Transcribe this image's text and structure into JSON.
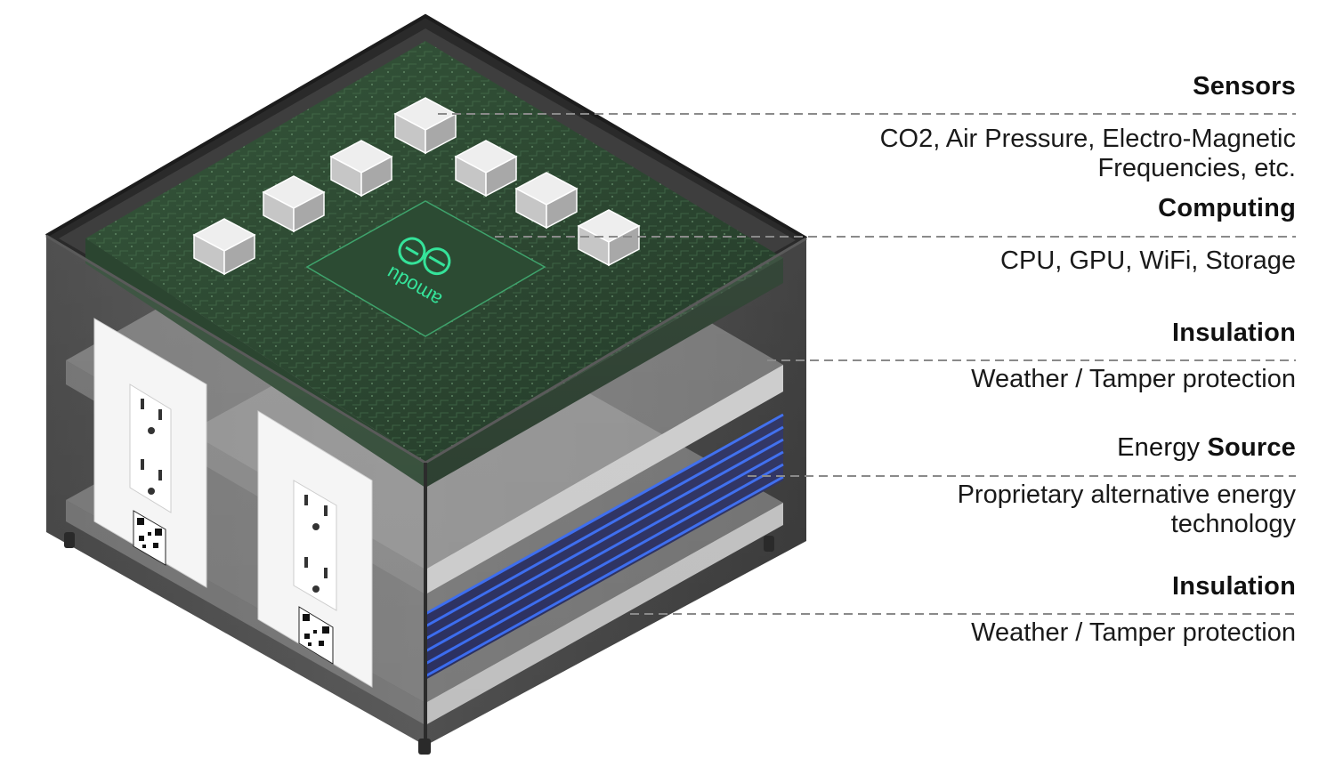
{
  "labels": {
    "sensors": {
      "title": "Sensors",
      "description": "CO2, Air Pressure, Electro-Magnetic\nFrequencies, etc."
    },
    "computing": {
      "title": "Computing",
      "description": "CPU, GPU, WiFi, Storage"
    },
    "insulation_top": {
      "title": "Insulation",
      "description": "Weather / Tamper protection"
    },
    "energy": {
      "title_prefix": "Energy ",
      "title_bold": "Source",
      "description": "Proprietary alternative energy\ntechnology"
    },
    "insulation_bottom": {
      "title": "Insulation",
      "description": "Weather / Tamper protection"
    }
  },
  "board_logo": {
    "text": "amodu"
  },
  "colors": {
    "enclosure_dark": "#3b3b3b",
    "pcb_green": "#2e4a33",
    "logo_glow": "#35e39a",
    "battery_blue": "#2a4cd6",
    "insulation_grey": "#b8b8b8",
    "leader_line": "#8a8a8a"
  }
}
